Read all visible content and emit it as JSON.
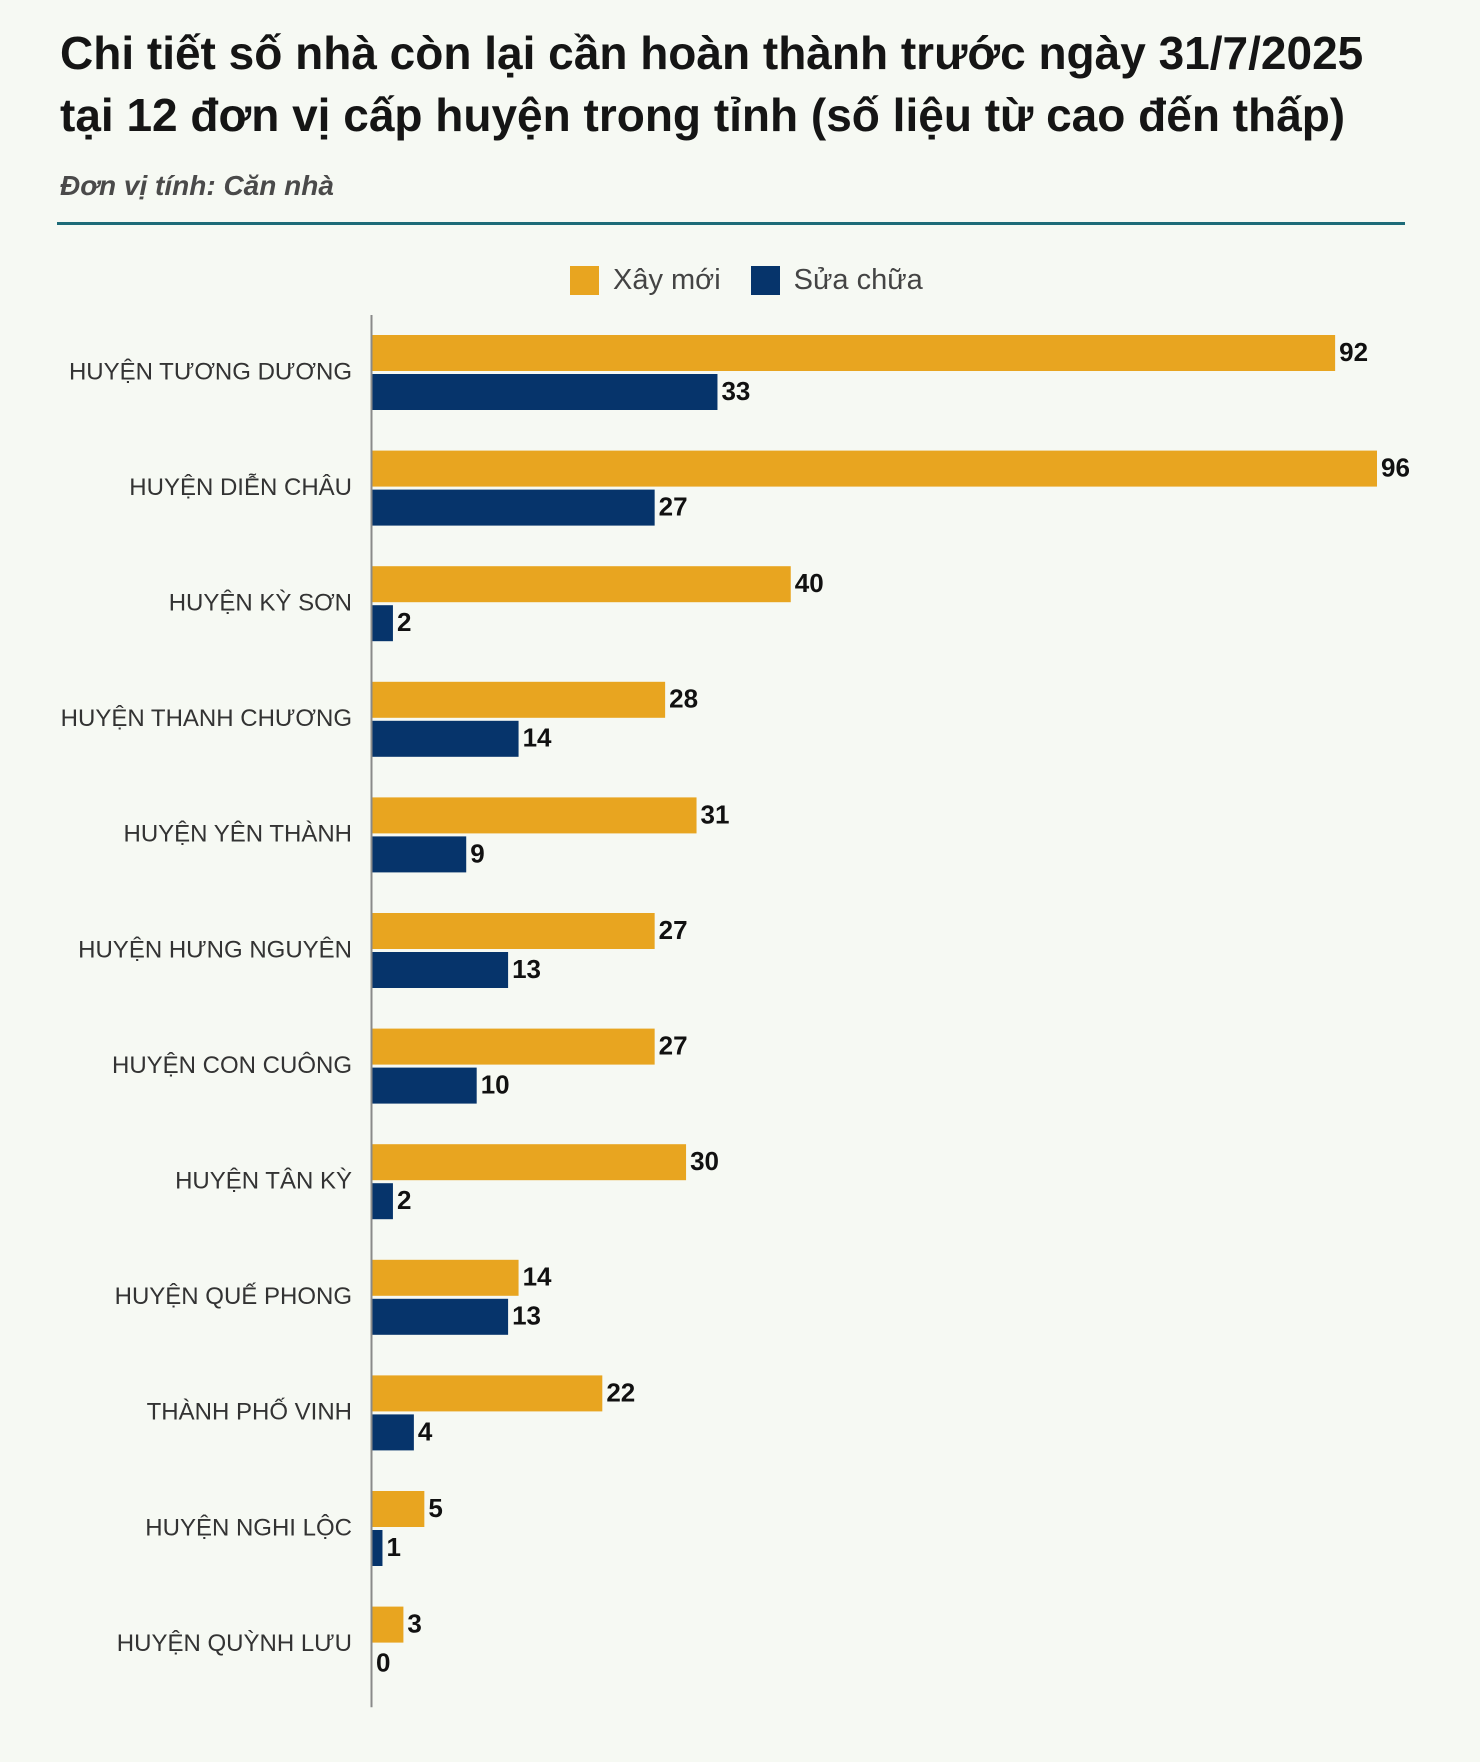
{
  "title_line1": "Chi tiết số nhà còn lại cần hoàn thành trước ngày 31/7/2025",
  "title_line2": "tại 12 đơn vị cấp huyện trong tỉnh (số liệu từ cao đến thấp)",
  "subtitle": "Đơn vị tính: Căn nhà",
  "colors": {
    "new": "#e8a520",
    "repair": "#06346b",
    "rule": "#1d6b78",
    "axis": "#8a8a8a"
  },
  "chart_data": {
    "type": "bar",
    "orientation": "horizontal",
    "title": "Chi tiết số nhà còn lại cần hoàn thành trước ngày 31/7/2025 tại 12 đơn vị cấp huyện trong tỉnh (số liệu từ cao đến thấp)",
    "unit": "Căn nhà",
    "categories": [
      "HUYỆN TƯƠNG DƯƠNG",
      "HUYỆN DIỄN CHÂU",
      "HUYỆN KỲ SƠN",
      "HUYỆN THANH CHƯƠNG",
      "HUYỆN YÊN THÀNH",
      "HUYỆN HƯNG NGUYÊN",
      "HUYỆN CON CUÔNG",
      "HUYỆN TÂN KỲ",
      "HUYỆN QUẾ PHONG",
      "THÀNH PHỐ VINH",
      "HUYỆN NGHI LỘC",
      "HUYỆN QUỲNH LƯU"
    ],
    "series": [
      {
        "name": "Xây mới",
        "color": "#e8a520",
        "values": [
          92,
          96,
          40,
          28,
          31,
          27,
          27,
          30,
          14,
          22,
          5,
          3
        ]
      },
      {
        "name": "Sửa chữa",
        "color": "#06346b",
        "values": [
          33,
          27,
          2,
          14,
          9,
          13,
          10,
          2,
          13,
          4,
          1,
          0
        ]
      }
    ],
    "xlim": [
      0,
      96
    ],
    "legend": "top-center",
    "grid": false
  }
}
